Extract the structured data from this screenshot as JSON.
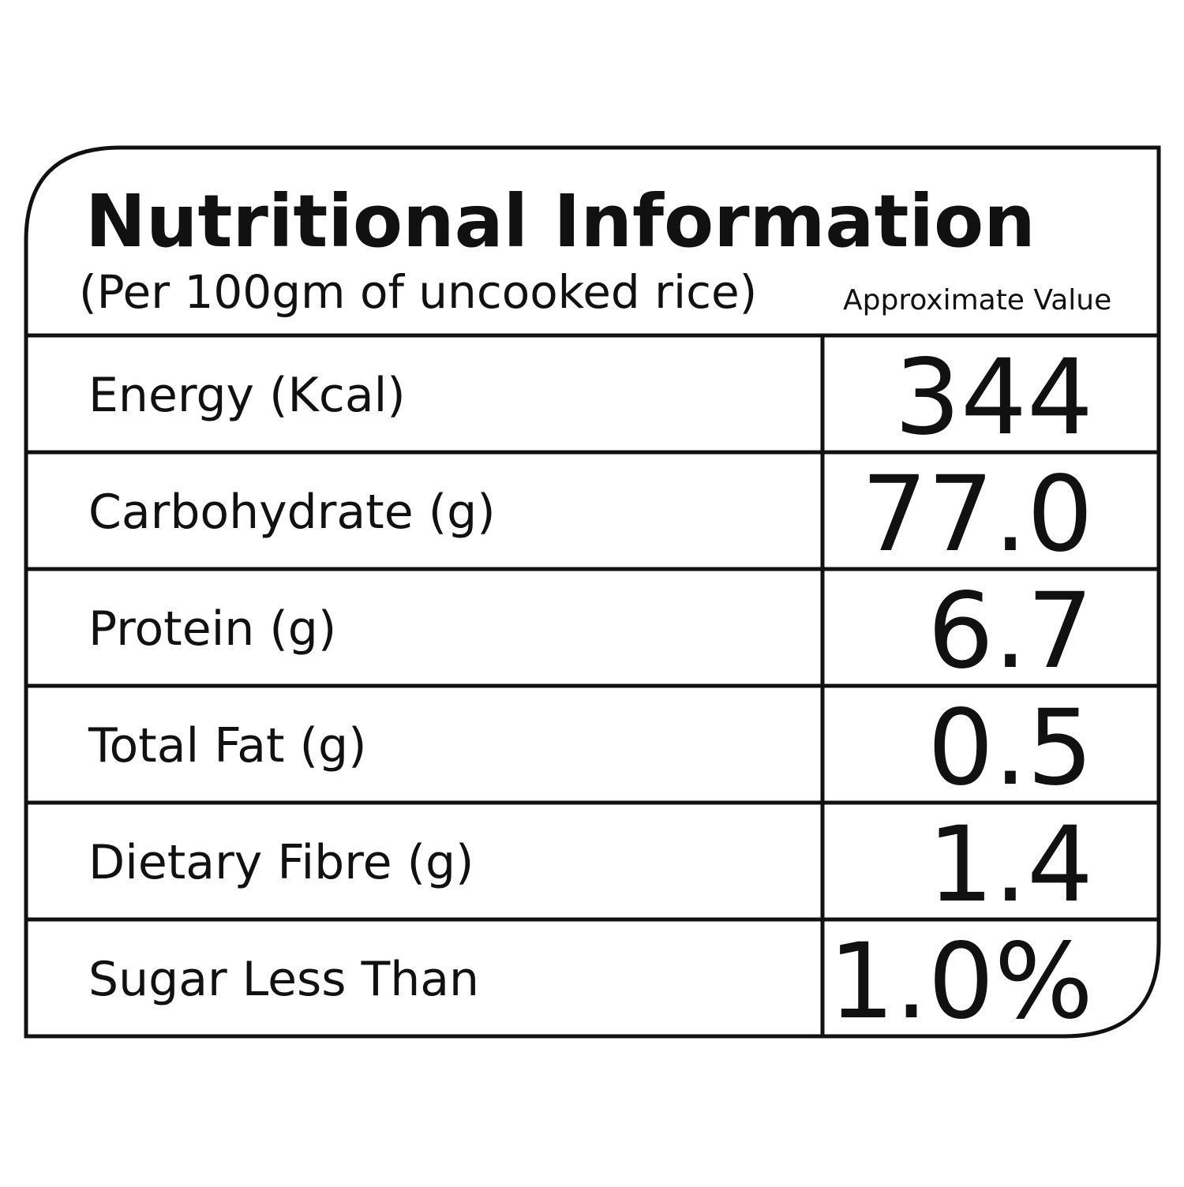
{
  "header": {
    "title": "Nutritional Information",
    "subtitle": "(Per 100gm of uncooked rice)",
    "note": "Approximate Value"
  },
  "table": {
    "rows": [
      {
        "label": "Energy (Kcal)",
        "value": "344"
      },
      {
        "label": "Carbohydrate (g)",
        "value": "77.0"
      },
      {
        "label": "Protein (g)",
        "value": "6.7"
      },
      {
        "label": "Total Fat (g)",
        "value": "0.5"
      },
      {
        "label": "Dietary Fibre (g)",
        "value": "1.4"
      },
      {
        "label": "Sugar Less Than",
        "value": "1.0%"
      }
    ]
  }
}
